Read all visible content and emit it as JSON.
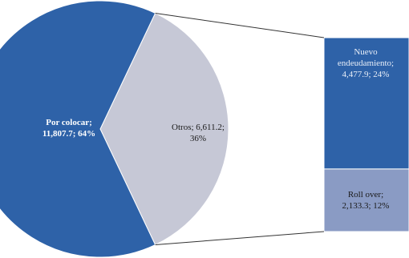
{
  "chart_data": {
    "type": "pie",
    "subtype": "bar-of-pie",
    "title": "",
    "slices": [
      {
        "label": "Por colocar",
        "value": 11807.7,
        "percent": "64%",
        "value_text": "11,807.7",
        "color": "#2e62a8",
        "text_color": "#ffffff"
      },
      {
        "label": "Otros",
        "value": 6611.2,
        "percent": "36%",
        "value_text": "6,611.2",
        "color": "#c6c8d6",
        "text_color": "#1a1a1a"
      }
    ],
    "breakdown_of": "Otros",
    "breakdown": [
      {
        "label": "Nuevo endeudamiento",
        "value": 4477.9,
        "percent": "24%",
        "value_text": "4,477.9",
        "color": "#2e62a8",
        "text_color": "#e8eef8"
      },
      {
        "label": "Roll over",
        "value": 2133.3,
        "percent": "12%",
        "value_text": "2,133.3",
        "color": "#8a9bc4",
        "text_color": "#1a1a1a"
      }
    ],
    "labels": {
      "por_colocar_line1": "Por colocar;",
      "por_colocar_line2": "11,807.7; 64%",
      "otros_line1": "Otros; 6,611.2;",
      "otros_line2": "36%",
      "nuevo_line1": "Nuevo",
      "nuevo_line2": "endeudamiento;",
      "nuevo_line3": "4,477.9; 24%",
      "rollover_line1": "Roll over;",
      "rollover_line2": "2,133.3; 12%"
    },
    "connector_color": "#333333"
  }
}
